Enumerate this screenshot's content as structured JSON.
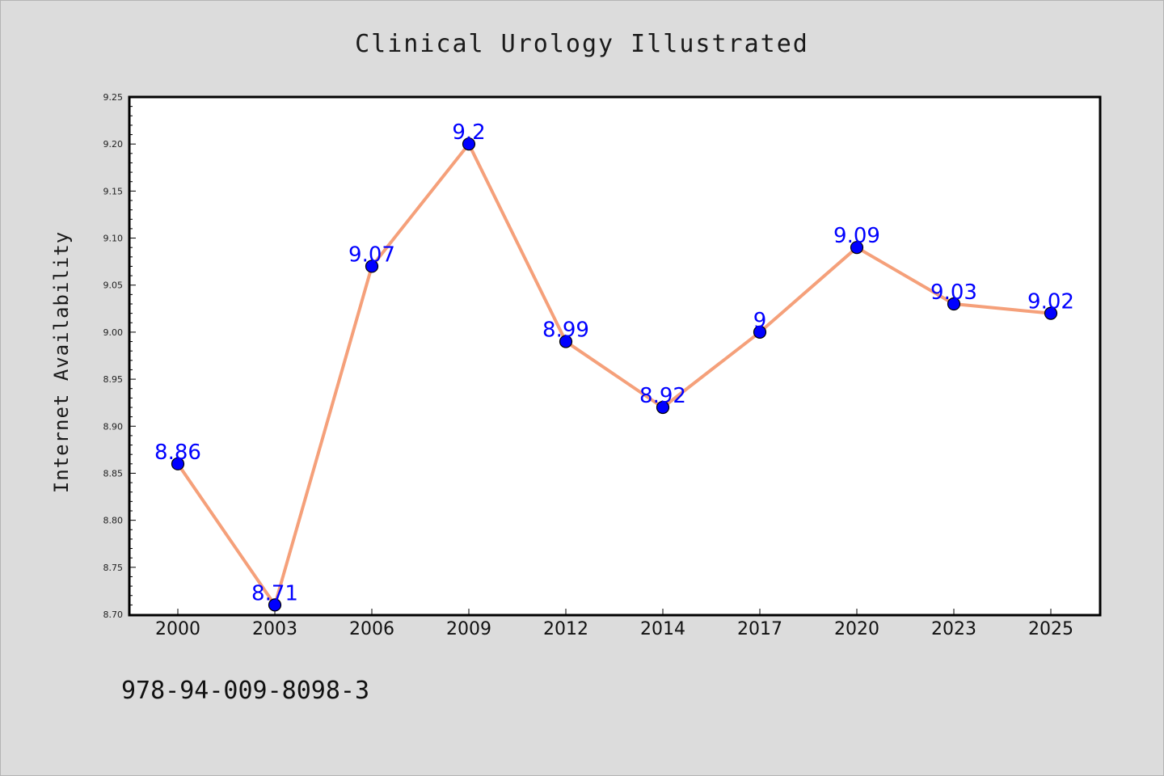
{
  "chart_data": {
    "type": "line",
    "title": "Clinical Urology Illustrated",
    "ylabel": "Internet Availability",
    "xlabel": "",
    "x": [
      "2000",
      "2003",
      "2006",
      "2009",
      "2012",
      "2014",
      "2017",
      "2020",
      "2023",
      "2025"
    ],
    "series": [
      {
        "values": [
          8.86,
          8.71,
          9.07,
          9.2,
          8.99,
          8.92,
          9.0,
          9.09,
          9.03,
          9.02
        ],
        "labels": [
          "8.86",
          "8.71",
          "9.07",
          "9.2",
          "8.99",
          "8.92",
          "9",
          "9.09",
          "9.03",
          "9.02"
        ]
      }
    ],
    "ylim": [
      8.7,
      9.25
    ],
    "yticks": [
      "8.70",
      "8.75",
      "8.80",
      "8.85",
      "8.90",
      "8.95",
      "9.00",
      "9.05",
      "9.10",
      "9.15",
      "9.20",
      "9.25"
    ],
    "grid": false,
    "colors": {
      "line": "#f5a07a",
      "marker": "#0000ff",
      "data_label": "#0000ff",
      "plot_background": "#ffffff",
      "page_background": "#dcdcdc"
    }
  },
  "footer": {
    "isbn": "978-94-009-8098-3"
  }
}
